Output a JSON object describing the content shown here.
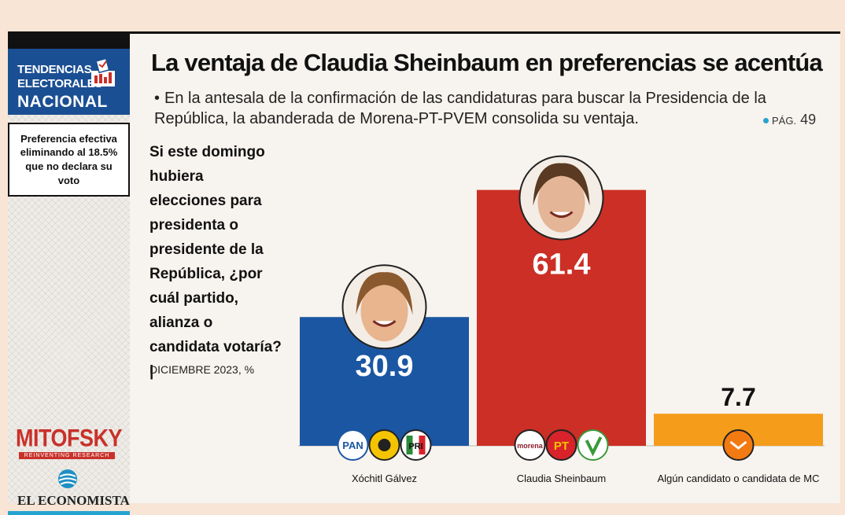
{
  "sidebar": {
    "brand_line1": "TENDENCIAS",
    "brand_line2": "ELECTORALES",
    "brand_line3": "NACIONAL",
    "preference_note": "Preferencia efectiva eliminando al 18.5% que no declara su voto",
    "pollster": "MITOFSKY",
    "pollster_tagline": "REINVENTING RESEARCH",
    "publisher": "EL ECONOMISTA",
    "icons": [
      "ballot-box-icon",
      "globe-icon"
    ]
  },
  "header": {
    "title": "La ventaja de Claudia Sheinbaum en preferencias se acentúa",
    "bullet": "•",
    "subtitle": "En la antesala de la confirmación de las candidaturas para buscar la Presidencia de la República, la abanderada de Morena-PT-PVEM consolida su ventaja.",
    "page_ref_prefix": "PÁG.",
    "page_ref_number": "49"
  },
  "question": {
    "text": "Si este domingo hubiera elecciones para presidenta o presidente de la República, ¿por cuál partido, alianza o candidata votaría? |",
    "date": "DICIEMBRE 2023, %"
  },
  "colors": {
    "blue": "#1b56a3",
    "red": "#cc2f25",
    "orange": "#f59c1a",
    "accent_cyan": "#27a3cf"
  },
  "chart_data": {
    "type": "bar",
    "categories": [
      "Xóchitl Gálvez",
      "Claudia Sheinbaum",
      "Algún candidato o candidata de MC"
    ],
    "values": [
      30.9,
      61.4,
      7.7
    ],
    "value_labels": [
      "30.9",
      "61.4",
      "7.7"
    ],
    "colors": [
      "#1b56a3",
      "#cc2f25",
      "#f59c1a"
    ],
    "party_logos": [
      [
        "PAN",
        "PRD",
        "PRI"
      ],
      [
        "morena",
        "PT",
        "PVEM"
      ],
      [
        "MC"
      ]
    ],
    "title": "",
    "xlabel": "",
    "ylabel": "",
    "ylim": [
      0,
      65
    ],
    "grid": false,
    "legend": "none"
  }
}
